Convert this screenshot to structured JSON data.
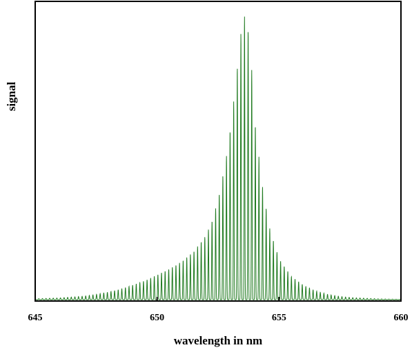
{
  "chart_data": {
    "type": "line",
    "xlabel": "wavelength in nm",
    "ylabel": "signal",
    "xlim": [
      645,
      660
    ],
    "ylim": [
      0,
      1.0
    ],
    "x_ticks": [
      645,
      650,
      655,
      660
    ],
    "x_tick_labels": [
      "645",
      "650",
      "655",
      "660"
    ],
    "y_ticks_labeled": false,
    "grid": false,
    "line_color": "#1f7a1f",
    "series": [
      {
        "x": [
          645.0,
          646.0,
          647.0,
          647.5,
          648.0,
          648.5,
          649.0,
          649.5,
          650.0,
          650.5,
          651.0,
          651.5,
          652.0,
          652.3,
          652.6,
          652.9,
          653.2,
          653.4,
          653.6,
          653.8,
          654.0,
          654.3,
          654.6,
          655.0,
          655.5,
          656.0,
          656.5,
          657.0,
          657.5,
          658.0,
          659.0,
          660.0
        ],
        "y_envelope": [
          0.003,
          0.006,
          0.012,
          0.018,
          0.026,
          0.036,
          0.05,
          0.065,
          0.085,
          0.105,
          0.13,
          0.165,
          0.22,
          0.28,
          0.38,
          0.52,
          0.72,
          0.9,
          0.98,
          0.9,
          0.62,
          0.4,
          0.25,
          0.14,
          0.08,
          0.05,
          0.03,
          0.018,
          0.011,
          0.007,
          0.003,
          0.001
        ]
      }
    ]
  }
}
